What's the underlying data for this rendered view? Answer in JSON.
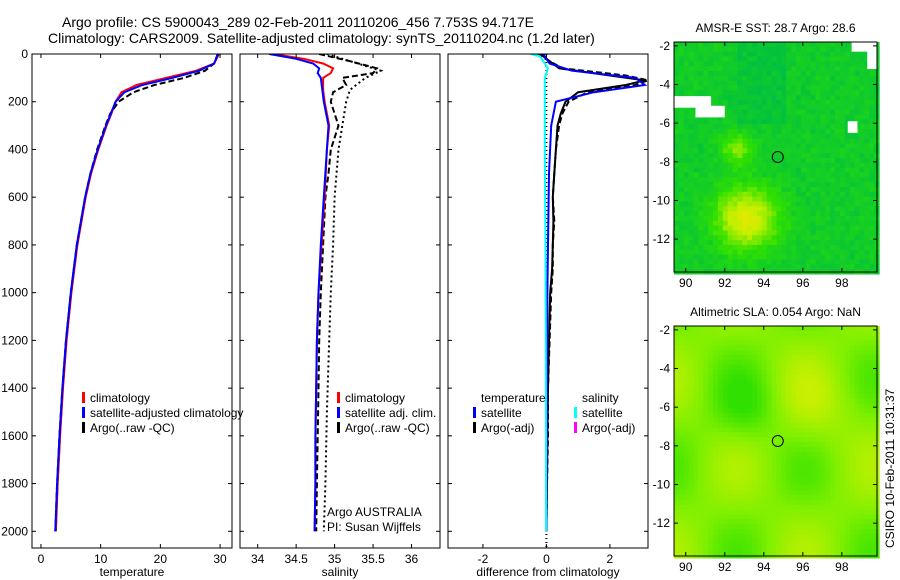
{
  "title_line1": "Argo profile: CS 5900043_289 02-Feb-2011 20110206_456 7.753S 94.717E",
  "title_line2": "Climatology: CARS2009. Satellite-adjusted climatology: synTS_20110204.nc (1.2d later)",
  "footer_stamp": "CSIRO 10-Feb-2011 10:31:37",
  "chart_data": [
    {
      "type": "line",
      "id": "temperature",
      "xlabel": "temperature",
      "ylabel": "",
      "xlim": [
        -1.5,
        32
      ],
      "ylim": [
        2070,
        0
      ],
      "xticks": [
        0,
        10,
        20,
        30
      ],
      "yticks": [
        0,
        200,
        400,
        600,
        800,
        1000,
        1200,
        1400,
        1600,
        1800,
        2000
      ],
      "legend": [
        "climatology",
        "satellite-adjusted climatology",
        "Argo(..raw -QC)"
      ],
      "series": [
        {
          "name": "climatology",
          "color": "#ff0000",
          "dash": "",
          "depth": [
            0,
            40,
            70,
            100,
            130,
            160,
            200,
            250,
            300,
            400,
            500,
            600,
            800,
            1000,
            1200,
            1400,
            1600,
            1800,
            2000
          ],
          "x": [
            29.8,
            29,
            26,
            21,
            16,
            13.5,
            12.5,
            11.8,
            11,
            9.6,
            8.4,
            7.5,
            6.1,
            5.1,
            4.3,
            3.7,
            3.2,
            2.8,
            2.5
          ]
        },
        {
          "name": "Argo(..raw -QC)",
          "color": "#000000",
          "dash": "6,3",
          "depth": [
            0,
            40,
            70,
            100,
            130,
            160,
            200,
            250,
            300,
            400,
            500,
            600,
            800,
            1000,
            1200,
            1400,
            1600,
            1800,
            2000
          ],
          "x": [
            29.6,
            29,
            27.5,
            24,
            19,
            15.5,
            13,
            11.6,
            10.8,
            9.4,
            8.3,
            7.4,
            6,
            5,
            4.2,
            3.6,
            3.1,
            2.7,
            2.4
          ]
        },
        {
          "name": "satellite-adjusted climatology",
          "color": "#0000ff",
          "dash": "",
          "depth": [
            0,
            40,
            70,
            100,
            130,
            160,
            200,
            250,
            300,
            400,
            500,
            600,
            800,
            1000,
            1200,
            1400,
            1600,
            1800,
            2000
          ],
          "x": [
            29.7,
            29,
            26.5,
            22,
            17,
            14,
            12.5,
            11.7,
            10.9,
            9.5,
            8.3,
            7.4,
            6,
            5,
            4.2,
            3.6,
            3.1,
            2.7,
            2.4
          ]
        }
      ]
    },
    {
      "type": "line",
      "id": "salinity",
      "xlabel": "salinity",
      "ylabel": "",
      "xlim": [
        33.77,
        36.37
      ],
      "ylim": [
        2070,
        0
      ],
      "xticks": [
        34,
        34.5,
        35,
        35.5,
        36
      ],
      "yticks": [
        0,
        200,
        400,
        600,
        800,
        1000,
        1200,
        1400,
        1600,
        1800,
        2000
      ],
      "legend": [
        "climatology",
        "satellite adj. clim.",
        "Argo(..raw -QC)"
      ],
      "annotation": [
        "Argo AUSTRALIA",
        "PI: Susan Wijffels"
      ],
      "series": [
        {
          "name": "Argo dotted",
          "color": "#000000",
          "dash": "2,3",
          "depth": [
            0,
            40,
            70,
            100,
            150,
            200,
            300,
            400,
            600,
            800,
            1000,
            1200,
            1500,
            1800,
            2000
          ],
          "x": [
            34.9,
            35.3,
            35.6,
            35.4,
            35.2,
            35.15,
            35.1,
            35.05,
            35.0,
            34.98,
            34.95,
            34.93,
            34.9,
            34.88,
            34.86
          ]
        },
        {
          "name": "Argo(..raw -QC)",
          "color": "#000000",
          "dash": "6,3",
          "depth": [
            0,
            30,
            60,
            80,
            100,
            130,
            160,
            200,
            250,
            300,
            400,
            500,
            600,
            800,
            1000,
            1200,
            1400,
            1600,
            1800,
            2000
          ],
          "x": [
            34.8,
            35.2,
            35.55,
            35.5,
            35.1,
            35.15,
            34.98,
            34.95,
            35.0,
            35.05,
            34.95,
            34.92,
            34.88,
            34.85,
            34.82,
            34.8,
            34.79,
            34.78,
            34.77,
            34.76
          ]
        },
        {
          "name": "climatology",
          "color": "#ff0000",
          "dash": "",
          "depth": [
            0,
            20,
            40,
            60,
            80,
            100,
            150,
            200,
            300,
            400,
            600,
            800,
            1000,
            1200,
            1400,
            1600,
            1800,
            2000
          ],
          "x": [
            34.2,
            34.6,
            34.85,
            34.98,
            34.95,
            34.85,
            34.85,
            34.87,
            34.93,
            34.9,
            34.87,
            34.83,
            34.79,
            34.77,
            34.76,
            34.75,
            34.75,
            34.74
          ]
        },
        {
          "name": "satellite adj. clim.",
          "color": "#0000ff",
          "dash": "",
          "depth": [
            0,
            20,
            40,
            60,
            80,
            100,
            150,
            200,
            300,
            400,
            600,
            800,
            1000,
            1200,
            1400,
            1600,
            1800,
            2000
          ],
          "x": [
            34.15,
            34.5,
            34.72,
            34.8,
            34.78,
            34.82,
            34.84,
            34.86,
            34.92,
            34.9,
            34.86,
            34.82,
            34.79,
            34.77,
            34.76,
            34.75,
            34.75,
            34.74
          ]
        }
      ]
    },
    {
      "type": "line",
      "id": "difference",
      "xlabel": "difference from climatology",
      "ylabel": "",
      "xlim": [
        -3.1,
        3.2
      ],
      "ylim": [
        2070,
        0
      ],
      "xticks": [
        -2,
        0,
        2
      ],
      "yticks": [
        0,
        200,
        400,
        600,
        800,
        1000,
        1200,
        1400,
        1600,
        1800,
        2000
      ],
      "legend_temperature_title": "temperature",
      "legend_salinity_title": "salinity",
      "legend": [
        "satellite",
        "Argo(-adj)",
        "satellite",
        "Argo(-adj)"
      ],
      "series": [
        {
          "name": "zero",
          "color": "#000000",
          "dash": "1,3",
          "depth": [
            0,
            2070
          ],
          "x": [
            0,
            0
          ]
        },
        {
          "name": "temperature Argo dashed",
          "color": "#000000",
          "dash": "6,3",
          "depth": [
            0,
            60,
            90,
            110,
            130,
            160,
            200,
            250,
            300,
            400,
            500,
            600,
            700,
            800,
            900,
            1000,
            1200,
            1400,
            1600,
            1800,
            2000
          ],
          "x": [
            -0.3,
            0.5,
            2.5,
            3.2,
            2.8,
            1.3,
            0.7,
            0.5,
            0.4,
            0.3,
            0.25,
            0.2,
            0.25,
            0.2,
            0.2,
            0.15,
            0.1,
            0.05,
            0.05,
            0.02,
            0.0
          ]
        },
        {
          "name": "temperature Argo(-adj)",
          "color": "#000000",
          "dash": "",
          "depth": [
            0,
            60,
            90,
            110,
            130,
            160,
            200,
            250,
            300,
            400,
            500,
            600,
            700,
            800,
            900,
            1000,
            1200,
            1400,
            1600,
            1800,
            2000
          ],
          "x": [
            -0.2,
            0.4,
            2,
            3.1,
            2.5,
            1.0,
            0.6,
            0.45,
            0.35,
            0.3,
            0.25,
            0.2,
            0.22,
            0.2,
            0.18,
            0.12,
            0.08,
            0.05,
            0.03,
            0.02,
            0.0
          ]
        },
        {
          "name": "temperature satellite",
          "color": "#0000ff",
          "dash": "",
          "depth": [
            0,
            40,
            70,
            100,
            130,
            160,
            200,
            300,
            500,
            800,
            1000,
            1400,
            1800,
            2000
          ],
          "x": [
            -0.1,
            0.1,
            0.8,
            2.8,
            3.1,
            1.5,
            0.3,
            0.15,
            0.08,
            0.05,
            0.03,
            0.02,
            0.0,
            0.0
          ]
        },
        {
          "name": "salinity satellite",
          "color": "#00ffff",
          "dash": "",
          "depth": [
            0,
            10,
            30,
            60,
            100,
            200,
            400,
            800,
            1200,
            1600,
            2000
          ],
          "x": [
            -0.5,
            -0.2,
            -0.1,
            0.05,
            -0.05,
            -0.05,
            -0.05,
            -0.03,
            -0.02,
            -0.01,
            -0.01
          ]
        }
      ]
    },
    {
      "type": "heatmap",
      "id": "sst-map",
      "title": "AMSR-E SST: 28.7 Argo: 28.6",
      "xlim": [
        89.4,
        99.8
      ],
      "ylim": [
        -13.7,
        -1.8
      ],
      "xticks": [
        90,
        92,
        94,
        96,
        98
      ],
      "yticks": [
        -2,
        -4,
        -6,
        -8,
        -10,
        -12
      ],
      "argo_position": [
        94.717,
        -7.753
      ],
      "colors": [
        "#0000c0",
        "#00c0a0",
        "#00c040",
        "#30e000",
        "#c0f000",
        "#ffe000",
        "#ff9000"
      ]
    },
    {
      "type": "heatmap",
      "id": "sla-map",
      "title": "Altimetric SLA: 0.054 Argo: NaN",
      "xlim": [
        89.4,
        99.8
      ],
      "ylim": [
        -13.7,
        -1.8
      ],
      "xticks": [
        90,
        92,
        94,
        96,
        98
      ],
      "yticks": [
        -2,
        -4,
        -6,
        -8,
        -10,
        -12
      ],
      "argo_position": [
        94.717,
        -7.753
      ],
      "colors": [
        "#30e000",
        "#80f000",
        "#c0f000",
        "#f0f000"
      ]
    }
  ]
}
